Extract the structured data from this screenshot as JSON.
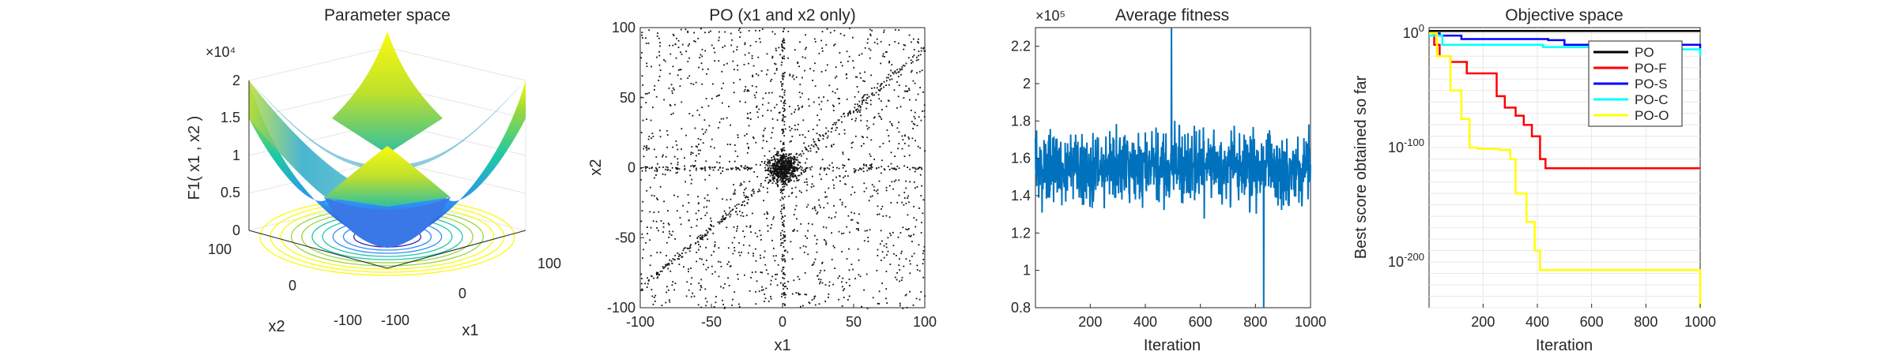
{
  "chart_data": [
    {
      "type": "surface",
      "title": "Parameter space",
      "zlabel": "F1( x1 , x2 )",
      "xlabel": "x1",
      "ylabel": "x2",
      "zlim": [
        0,
        20000
      ],
      "z_exponent": "×10⁴",
      "z_ticks": [
        "0",
        "0.5",
        "1",
        "1.5",
        "2"
      ],
      "x1_ticks": [
        "-100",
        "0",
        "100"
      ],
      "x2_ticks": [
        "-100",
        "0",
        "100"
      ],
      "contour_levels": 11,
      "colormap": [
        "#3e26a8",
        "#2f8ff6",
        "#1fc8a5",
        "#99d83c",
        "#f9fb0e"
      ]
    },
    {
      "type": "scatter",
      "title": "PO (x1 and x2 only)",
      "xlabel": "x1",
      "ylabel": "x2",
      "xlim": [
        -100,
        100
      ],
      "ylim": [
        -100,
        100
      ],
      "x_ticks": [
        "-100",
        "-50",
        "0",
        "50",
        "100"
      ],
      "y_ticks": [
        "-100",
        "-50",
        "0",
        "50",
        "100"
      ],
      "point_count": 2600
    },
    {
      "type": "line",
      "title": "Average fitness",
      "xlabel": "Iteration",
      "ylabel": "",
      "xlim": [
        1,
        1000
      ],
      "ylim": [
        0.8,
        2.3
      ],
      "y_exponent": "×10⁵",
      "x_ticks": [
        "200",
        "400",
        "600",
        "800",
        "1000"
      ],
      "y_ticks": [
        "0.8",
        "1",
        "1.2",
        "1.4",
        "1.6",
        "1.8",
        "2",
        "2.2"
      ],
      "mean": 1.55,
      "color": "#0072bd"
    },
    {
      "type": "line",
      "scale": "log",
      "title": "Objective space",
      "xlabel": "Iteration",
      "ylabel": "Best score obtained so far",
      "xlim": [
        1,
        1000
      ],
      "y_ticks": [
        "10^0",
        "10^-100",
        "10^-200"
      ],
      "x_ticks": [
        "200",
        "400",
        "600",
        "800",
        "1000"
      ],
      "legend_position": "top-right",
      "series": [
        {
          "name": "PO",
          "color": "#000000",
          "points": [
            [
              1,
              2
            ],
            [
              1000,
              2
            ]
          ]
        },
        {
          "name": "PO-F",
          "color": "#ff0000",
          "points": [
            [
              1,
              0
            ],
            [
              20,
              -10
            ],
            [
              40,
              -20
            ],
            [
              80,
              -25
            ],
            [
              140,
              -35
            ],
            [
              220,
              -35
            ],
            [
              250,
              -55
            ],
            [
              280,
              -65
            ],
            [
              320,
              -72
            ],
            [
              350,
              -80
            ],
            [
              380,
              -90
            ],
            [
              410,
              -110
            ],
            [
              430,
              -118
            ],
            [
              1000,
              -118
            ]
          ]
        },
        {
          "name": "PO-S",
          "color": "#0000ff",
          "points": [
            [
              1,
              0
            ],
            [
              40,
              -2
            ],
            [
              120,
              -5
            ],
            [
              200,
              -5
            ],
            [
              440,
              -6
            ],
            [
              500,
              -10
            ],
            [
              1000,
              -13
            ]
          ]
        },
        {
          "name": "PO-C",
          "color": "#00ffff",
          "points": [
            [
              1,
              -2
            ],
            [
              50,
              -10
            ],
            [
              200,
              -10
            ],
            [
              420,
              -12
            ],
            [
              600,
              -14
            ],
            [
              1000,
              -20
            ]
          ]
        },
        {
          "name": "PO-O",
          "color": "#ffff00",
          "points": [
            [
              1,
              0
            ],
            [
              30,
              -20
            ],
            [
              80,
              -50
            ],
            [
              120,
              -75
            ],
            [
              150,
              -100
            ],
            [
              180,
              -101
            ],
            [
              260,
              -102
            ],
            [
              300,
              -110
            ],
            [
              320,
              -140
            ],
            [
              360,
              -165
            ],
            [
              390,
              -190
            ],
            [
              410,
              -207
            ],
            [
              600,
              -207
            ],
            [
              970,
              -207
            ],
            [
              1000,
              -240
            ]
          ]
        }
      ]
    }
  ]
}
